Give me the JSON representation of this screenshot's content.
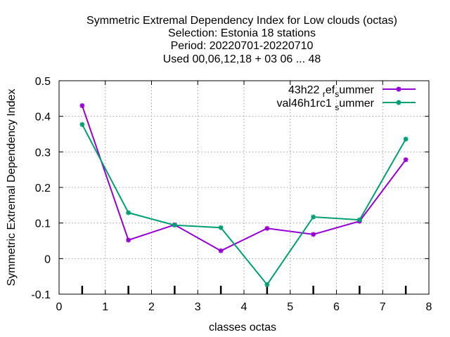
{
  "chart_data": {
    "type": "line",
    "title_lines": [
      "Symmetric Extremal Dependency Index  for Low clouds (octas)",
      "Selection: Estonia     18 stations",
      "Period: 20220701-20220710",
      "Used  00,06,12,18  + 03 06 ... 48"
    ],
    "xlabel": "classes octas",
    "ylabel": "Symmetric Extremal Dependency Index",
    "xlim": [
      0,
      8
    ],
    "ylim": [
      -0.1,
      0.5
    ],
    "xticks": [
      0,
      1,
      2,
      3,
      4,
      5,
      6,
      7,
      8
    ],
    "yticks": [
      -0.1,
      0,
      0.1,
      0.2,
      0.3,
      0.4,
      0.5
    ],
    "xtick_labels": [
      "0",
      "1",
      "2",
      "3",
      "4",
      "5",
      "6",
      "7",
      "8"
    ],
    "ytick_labels": [
      "-0.1",
      "0",
      "0.1",
      "0.2",
      "0.3",
      "0.4",
      "0.5"
    ],
    "grid": true,
    "legend_position": "top-right",
    "x": [
      0.5,
      1.5,
      2.5,
      3.5,
      4.5,
      5.5,
      6.5,
      7.5
    ],
    "series": [
      {
        "name_parts": [
          "43h22 ",
          "r",
          "ef",
          "s",
          "ummer"
        ],
        "color": "#9400d3",
        "values": [
          0.43,
          0.052,
          0.095,
          0.022,
          0.085,
          0.068,
          0.105,
          0.278
        ]
      },
      {
        "name_parts": [
          "val46h1rc1 ",
          "s",
          "ummer"
        ],
        "color": "#009e73",
        "values": [
          0.377,
          0.129,
          0.094,
          0.087,
          -0.073,
          0.117,
          0.109,
          0.336
        ]
      }
    ]
  }
}
